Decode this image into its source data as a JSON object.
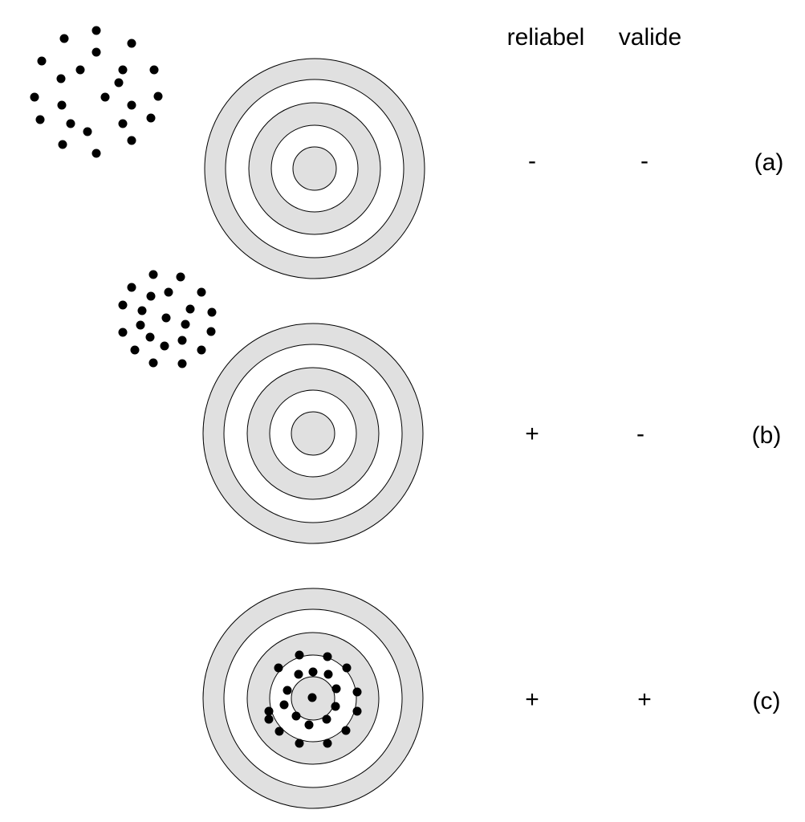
{
  "headers": {
    "reliable": "reliabel",
    "valid": "valide"
  },
  "rows": [
    {
      "id": "a",
      "tag": "(a)",
      "reliable": "-",
      "valid": "-",
      "hits": "scattered far off target"
    },
    {
      "id": "b",
      "tag": "(b)",
      "reliable": "+",
      "valid": "-",
      "hits": "tight cluster off target"
    },
    {
      "id": "c",
      "tag": "(c)",
      "reliable": "+",
      "valid": "+",
      "hits": "clustered on target center"
    }
  ],
  "colors": {
    "ring_fill": "#e0e0e0",
    "ring_gap": "#ffffff",
    "stroke": "#000000",
    "dot": "#000000"
  }
}
